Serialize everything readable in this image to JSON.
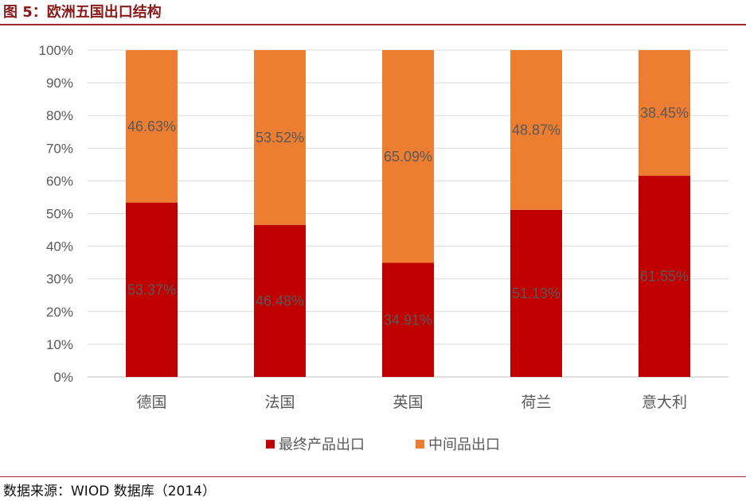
{
  "figure_title": "图 5：欧洲五国出口结构",
  "source_note": "数据来源：WIOD 数据库（2014）",
  "colors": {
    "final": "#c00000",
    "intermediate": "#ed7d31",
    "accent": "#a0292d"
  },
  "chart_data": {
    "type": "bar",
    "stacked": true,
    "percent": true,
    "categories": [
      "德国",
      "法国",
      "英国",
      "荷兰",
      "意大利"
    ],
    "series": [
      {
        "name": "最终产品出口",
        "values": [
          53.37,
          46.48,
          34.91,
          51.13,
          61.55
        ],
        "labels": [
          "53.37%",
          "46.48%",
          "34.91%",
          "51.13%",
          "61.55%"
        ],
        "color": "#c00000"
      },
      {
        "name": "中间品出口",
        "values": [
          46.63,
          53.52,
          65.09,
          48.87,
          38.45
        ],
        "labels": [
          "46.63%",
          "53.52%",
          "65.09%",
          "48.87%",
          "38.45%"
        ],
        "color": "#ed7d31"
      }
    ],
    "ylim": [
      0,
      100
    ],
    "yticks": [
      "0%",
      "10%",
      "20%",
      "30%",
      "40%",
      "50%",
      "60%",
      "70%",
      "80%",
      "90%",
      "100%"
    ],
    "grid": true,
    "legend_position": "bottom"
  }
}
